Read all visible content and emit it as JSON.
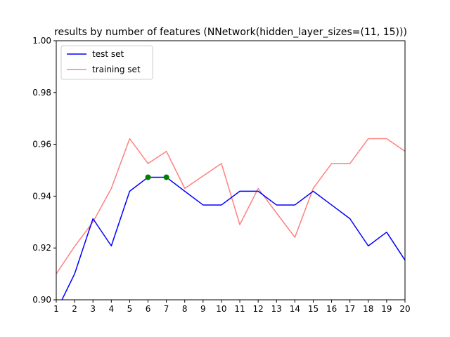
{
  "chart_data": {
    "type": "line",
    "title": "results by number of features (NNetwork(hidden_layer_sizes=(11, 15)))",
    "xlabel": "",
    "ylabel": "",
    "xlim": [
      1,
      20
    ],
    "ylim": [
      0.9,
      1.0
    ],
    "x_ticks": [
      1,
      2,
      3,
      4,
      5,
      6,
      7,
      8,
      9,
      10,
      11,
      12,
      13,
      14,
      15,
      16,
      17,
      18,
      19,
      20
    ],
    "y_ticks": [
      0.9,
      0.92,
      0.94,
      0.96,
      0.98,
      1.0
    ],
    "y_tick_labels": [
      "0.90",
      "0.92",
      "0.94",
      "0.96",
      "0.98",
      "1.00"
    ],
    "grid": false,
    "legend_position": "top-left",
    "series": [
      {
        "name": "test set",
        "color": "#0000ff",
        "x": [
          1,
          2,
          3,
          4,
          5,
          6,
          7,
          8,
          9,
          10,
          11,
          12,
          13,
          14,
          15,
          16,
          17,
          18,
          19,
          20
        ],
        "values": [
          0.8955,
          0.91,
          0.9313,
          0.9208,
          0.9419,
          0.9473,
          0.9473,
          0.9419,
          0.9366,
          0.9366,
          0.9419,
          0.9419,
          0.9366,
          0.9366,
          0.9419,
          0.9366,
          0.9313,
          0.9208,
          0.9261,
          0.9153
        ]
      },
      {
        "name": "training set",
        "color": "#ff8080",
        "x": [
          1,
          2,
          3,
          4,
          5,
          6,
          7,
          8,
          9,
          10,
          11,
          12,
          13,
          14,
          15,
          16,
          17,
          18,
          19,
          20
        ],
        "values": [
          0.91,
          0.9206,
          0.93,
          0.943,
          0.9622,
          0.9526,
          0.9573,
          0.943,
          0.9478,
          0.9526,
          0.929,
          0.943,
          0.9335,
          0.9241,
          0.943,
          0.9526,
          0.9526,
          0.9622,
          0.9622,
          0.9573
        ]
      }
    ],
    "highlight_points": {
      "color": "#008000",
      "x": [
        6,
        7
      ],
      "values": [
        0.9473,
        0.9473
      ]
    }
  }
}
